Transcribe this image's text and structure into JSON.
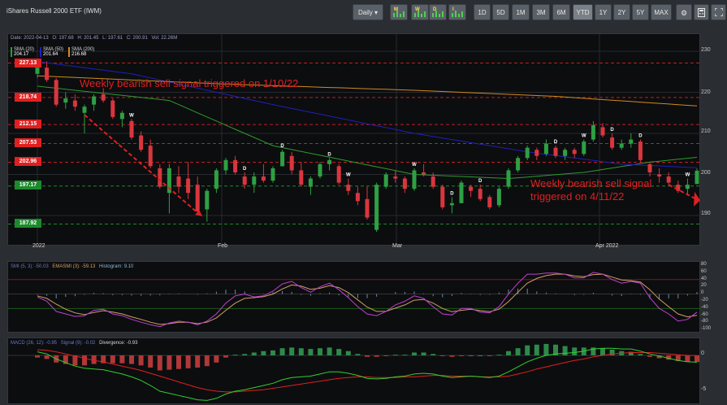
{
  "header": {
    "title": "iShares Russell 2000 ETF (IWM)",
    "interval_label": "Daily",
    "pattern_buttons": [
      "M",
      "W",
      "D",
      "I"
    ],
    "ranges": [
      "1D",
      "5D",
      "1M",
      "3M",
      "6M",
      "YTD",
      "1Y",
      "2Y",
      "5Y",
      "MAX"
    ],
    "active_range": "YTD",
    "icons": [
      "settings-icon",
      "calculator-icon",
      "fullscreen-icon"
    ]
  },
  "ohlc": {
    "date": "Date: 2022-04-13",
    "open": "O: 197.68",
    "high": "H: 201.45",
    "low": "L: 197.61",
    "close": "C: 200.91",
    "vol": "Vol: 22.26M"
  },
  "sma_legend": [
    {
      "label": "SMA (20)",
      "value": "204.17",
      "color": "#2e9c2e"
    },
    {
      "label": "SMA (50)",
      "value": "201.64",
      "color": "#2020b8"
    },
    {
      "label": "SMA (200)",
      "value": "216.68",
      "color": "#d08a20"
    }
  ],
  "price_levels": [
    {
      "value": "227.13",
      "kind": "resistance"
    },
    {
      "value": "218.74",
      "kind": "resistance"
    },
    {
      "value": "212.15",
      "kind": "resistance"
    },
    {
      "value": "207.53",
      "kind": "resistance"
    },
    {
      "value": "202.96",
      "kind": "resistance"
    },
    {
      "value": "197.17",
      "kind": "support"
    },
    {
      "value": "187.92",
      "kind": "support"
    }
  ],
  "annotations": {
    "first": "Weekly bearish sell signal triggered on 1/10/22",
    "second_line1": "Weekly bearish sell signal",
    "second_line2": "triggered on 4/11/22"
  },
  "smi_legend": {
    "smi": "SMI (5, 3): -50.03",
    "ema": "EMASMI (3): -59.13",
    "hist": "Histogram: 9.10"
  },
  "macd_legend": {
    "macd": "MACD (26, 12): -0.95",
    "signal": "Signal (9): -0.02",
    "div": "Divergence: -0.93"
  },
  "x_axis": [
    "2022",
    "Feb",
    "Mar",
    "Apr 2022"
  ],
  "price_axis": [
    "230",
    "220",
    "210",
    "200",
    "190"
  ],
  "smi_axis": [
    "80",
    "60",
    "40",
    "20",
    "0",
    "-20",
    "-40",
    "-60",
    "-80",
    "-100"
  ],
  "macd_axis": [
    "0",
    "-5"
  ],
  "chart_data": {
    "type": "candlestick",
    "title": "iShares Russell 2000 ETF (IWM)",
    "ylim": [
      185,
      232
    ],
    "dates": [
      "01-03",
      "01-04",
      "01-05",
      "01-06",
      "01-07",
      "01-10",
      "01-11",
      "01-12",
      "01-13",
      "01-14",
      "01-18",
      "01-19",
      "01-20",
      "01-21",
      "01-24",
      "01-25",
      "01-26",
      "01-27",
      "01-28",
      "01-31",
      "02-01",
      "02-02",
      "02-03",
      "02-04",
      "02-07",
      "02-08",
      "02-09",
      "02-10",
      "02-11",
      "02-14",
      "02-15",
      "02-16",
      "02-17",
      "02-18",
      "02-22",
      "02-23",
      "02-24",
      "02-25",
      "02-28",
      "03-01",
      "03-02",
      "03-03",
      "03-04",
      "03-07",
      "03-08",
      "03-09",
      "03-10",
      "03-11",
      "03-14",
      "03-15",
      "03-16",
      "03-17",
      "03-18",
      "03-21",
      "03-22",
      "03-23",
      "03-24",
      "03-25",
      "03-28",
      "03-29",
      "03-30",
      "03-31",
      "04-01",
      "04-04",
      "04-05",
      "04-06",
      "04-07",
      "04-08",
      "04-11",
      "04-12",
      "04-13"
    ],
    "ohlc": [
      [
        224.5,
        227.0,
        223.5,
        226.0
      ],
      [
        226.0,
        227.5,
        222.5,
        223.0
      ],
      [
        223.0,
        223.5,
        216.5,
        217.0
      ],
      [
        217.5,
        220.0,
        216.0,
        218.5
      ],
      [
        218.0,
        219.5,
        215.5,
        216.5
      ],
      [
        215.0,
        217.0,
        210.0,
        216.5
      ],
      [
        217.0,
        219.5,
        215.5,
        219.0
      ],
      [
        219.5,
        221.0,
        217.5,
        218.0
      ],
      [
        218.0,
        218.5,
        213.5,
        214.0
      ],
      [
        213.5,
        215.5,
        211.5,
        215.0
      ],
      [
        213.0,
        213.5,
        208.5,
        209.0
      ],
      [
        209.5,
        210.5,
        205.5,
        206.0
      ],
      [
        207.0,
        208.5,
        201.5,
        202.0
      ],
      [
        201.5,
        202.5,
        196.5,
        197.0
      ],
      [
        195.5,
        202.5,
        190.5,
        201.5
      ],
      [
        199.5,
        202.0,
        195.5,
        197.0
      ],
      [
        199.0,
        203.0,
        194.0,
        195.5
      ],
      [
        197.5,
        199.5,
        190.5,
        191.0
      ],
      [
        191.5,
        196.5,
        188.5,
        196.0
      ],
      [
        196.5,
        201.5,
        195.5,
        201.0
      ],
      [
        201.0,
        204.0,
        200.0,
        203.5
      ],
      [
        203.5,
        204.5,
        200.0,
        200.5
      ],
      [
        199.5,
        200.5,
        196.5,
        197.5
      ],
      [
        197.5,
        200.5,
        195.5,
        199.5
      ],
      [
        199.5,
        202.5,
        198.0,
        198.5
      ],
      [
        198.5,
        202.0,
        198.0,
        201.5
      ],
      [
        202.0,
        206.0,
        202.0,
        205.5
      ],
      [
        204.5,
        205.5,
        200.0,
        201.0
      ],
      [
        201.0,
        203.0,
        197.0,
        197.5
      ],
      [
        197.0,
        199.5,
        195.0,
        199.0
      ],
      [
        199.5,
        203.0,
        199.0,
        202.5
      ],
      [
        202.5,
        204.0,
        201.0,
        203.5
      ],
      [
        202.0,
        202.5,
        197.5,
        198.0
      ],
      [
        197.5,
        199.0,
        195.0,
        196.0
      ],
      [
        195.5,
        197.0,
        192.5,
        193.5
      ],
      [
        194.0,
        197.0,
        189.0,
        189.5
      ],
      [
        186.5,
        198.0,
        186.0,
        197.5
      ],
      [
        197.0,
        200.5,
        196.5,
        200.0
      ],
      [
        199.5,
        201.0,
        198.0,
        199.0
      ],
      [
        199.0,
        199.5,
        195.5,
        196.5
      ],
      [
        196.5,
        201.5,
        196.0,
        201.0
      ],
      [
        200.5,
        202.5,
        199.5,
        200.0
      ],
      [
        199.5,
        200.5,
        196.5,
        197.0
      ],
      [
        197.0,
        197.5,
        191.5,
        192.0
      ],
      [
        192.5,
        194.5,
        190.5,
        193.0
      ],
      [
        193.0,
        198.5,
        193.0,
        198.0
      ],
      [
        197.0,
        197.5,
        194.5,
        196.0
      ],
      [
        196.5,
        197.5,
        193.5,
        194.0
      ],
      [
        194.5,
        195.0,
        191.5,
        192.0
      ],
      [
        192.5,
        197.0,
        192.0,
        196.5
      ],
      [
        197.0,
        201.5,
        196.5,
        201.0
      ],
      [
        201.0,
        204.5,
        200.5,
        204.0
      ],
      [
        204.0,
        207.0,
        203.5,
        206.5
      ],
      [
        206.0,
        206.5,
        203.5,
        204.5
      ],
      [
        205.0,
        208.5,
        204.5,
        207.5
      ],
      [
        206.5,
        207.0,
        204.0,
        204.5
      ],
      [
        204.5,
        206.5,
        203.5,
        206.0
      ],
      [
        206.0,
        206.5,
        204.0,
        205.0
      ],
      [
        205.0,
        208.5,
        204.5,
        208.0
      ],
      [
        208.5,
        213.0,
        208.0,
        212.0
      ],
      [
        211.5,
        212.5,
        209.0,
        209.5
      ],
      [
        209.0,
        210.0,
        206.0,
        206.5
      ],
      [
        206.5,
        208.5,
        206.0,
        207.5
      ],
      [
        207.5,
        210.0,
        206.5,
        208.5
      ],
      [
        208.0,
        208.5,
        203.0,
        203.5
      ],
      [
        202.5,
        203.0,
        199.5,
        200.5
      ],
      [
        200.0,
        201.5,
        198.0,
        199.5
      ],
      [
        199.5,
        200.5,
        197.5,
        198.0
      ],
      [
        197.5,
        198.5,
        195.5,
        196.0
      ],
      [
        196.5,
        199.0,
        195.0,
        197.5
      ],
      [
        197.68,
        201.45,
        197.61,
        200.91
      ]
    ],
    "series": [
      {
        "name": "SMA (20)",
        "values": [
          [
            0,
            221.5
          ],
          [
            14,
            218.0
          ],
          [
            25,
            207.0
          ],
          [
            40,
            200.0
          ],
          [
            50,
            199.0
          ],
          [
            58,
            200.5
          ],
          [
            65,
            203.0
          ],
          [
            70,
            204.17
          ]
        ]
      },
      {
        "name": "SMA (50)",
        "values": [
          [
            0,
            227.5
          ],
          [
            10,
            224.5
          ],
          [
            25,
            217.0
          ],
          [
            40,
            210.0
          ],
          [
            52,
            205.5
          ],
          [
            62,
            202.5
          ],
          [
            70,
            201.64
          ]
        ]
      },
      {
        "name": "SMA (200)",
        "values": [
          [
            0,
            224.0
          ],
          [
            20,
            222.0
          ],
          [
            40,
            220.5
          ],
          [
            55,
            219.0
          ],
          [
            70,
            216.68
          ]
        ]
      }
    ],
    "signals": [
      {
        "type": "W",
        "index": 10
      },
      {
        "type": "D",
        "index": 22
      },
      {
        "type": "D",
        "index": 26
      },
      {
        "type": "D",
        "index": 31
      },
      {
        "type": "W",
        "index": 33
      },
      {
        "type": "W",
        "index": 40
      },
      {
        "type": "D",
        "index": 44
      },
      {
        "type": "D",
        "index": 47
      },
      {
        "type": "D",
        "index": 55
      },
      {
        "type": "W",
        "index": 58
      },
      {
        "type": "D",
        "index": 61
      },
      {
        "type": "D",
        "index": 64
      },
      {
        "type": "W",
        "index": 69
      }
    ],
    "smi": [
      -8,
      -20,
      -48,
      -55,
      -62,
      -60,
      -45,
      -42,
      -55,
      -60,
      -70,
      -78,
      -85,
      -90,
      -80,
      -75,
      -78,
      -85,
      -75,
      -55,
      -25,
      -5,
      0,
      -8,
      -5,
      8,
      28,
      35,
      18,
      5,
      20,
      30,
      12,
      -10,
      -35,
      -55,
      -60,
      -48,
      -30,
      -20,
      -5,
      -12,
      -35,
      -55,
      -58,
      -40,
      -40,
      -50,
      -52,
      -35,
      0,
      30,
      55,
      55,
      58,
      58,
      55,
      45,
      45,
      60,
      55,
      40,
      30,
      35,
      30,
      -10,
      -40,
      -55,
      -75,
      -70,
      -50
    ],
    "emasmi": [
      -5,
      -12,
      -28,
      -42,
      -52,
      -57,
      -51,
      -46,
      -50,
      -55,
      -63,
      -70,
      -78,
      -84,
      -82,
      -78,
      -78,
      -82,
      -78,
      -66,
      -45,
      -25,
      -12,
      -10,
      -7,
      0,
      14,
      25,
      22,
      13,
      16,
      23,
      18,
      4,
      -16,
      -36,
      -48,
      -48,
      -39,
      -30,
      -17,
      -15,
      -25,
      -40,
      -49,
      -45,
      -42,
      -46,
      -49,
      -42,
      -21,
      5,
      30,
      43,
      51,
      55,
      55,
      50,
      48,
      54,
      55,
      47,
      39,
      37,
      33,
      12,
      -14,
      -35,
      -55,
      -63,
      -59
    ],
    "macd": [
      0.5,
      0.2,
      -0.5,
      -1.0,
      -1.5,
      -1.8,
      -1.9,
      -2.0,
      -2.3,
      -2.6,
      -3.0,
      -3.5,
      -4.2,
      -5.0,
      -5.3,
      -5.6,
      -5.9,
      -6.2,
      -6.3,
      -6.0,
      -5.4,
      -5.0,
      -4.8,
      -4.5,
      -4.2,
      -3.9,
      -3.4,
      -3.1,
      -3.0,
      -2.9,
      -2.6,
      -2.3,
      -2.3,
      -2.5,
      -2.8,
      -3.2,
      -3.3,
      -3.2,
      -3.0,
      -2.9,
      -2.6,
      -2.5,
      -2.6,
      -2.9,
      -3.1,
      -3.0,
      -2.9,
      -3.0,
      -3.1,
      -2.9,
      -2.3,
      -1.6,
      -0.9,
      -0.4,
      0.0,
      0.2,
      0.3,
      0.4,
      0.6,
      0.9,
      1.0,
      1.0,
      0.9,
      0.9,
      0.6,
      0.2,
      -0.1,
      -0.4,
      -0.7,
      -0.9,
      -0.95
    ],
    "signal": [
      0.8,
      0.7,
      0.5,
      0.2,
      -0.1,
      -0.4,
      -0.7,
      -0.9,
      -1.2,
      -1.5,
      -1.8,
      -2.1,
      -2.5,
      -2.9,
      -3.3,
      -3.7,
      -4.1,
      -4.5,
      -4.8,
      -5.0,
      -5.1,
      -5.1,
      -5.0,
      -4.9,
      -4.8,
      -4.6,
      -4.4,
      -4.2,
      -4.0,
      -3.8,
      -3.6,
      -3.4,
      -3.2,
      -3.1,
      -3.0,
      -3.0,
      -3.1,
      -3.1,
      -3.1,
      -3.0,
      -3.0,
      -2.9,
      -2.8,
      -2.8,
      -2.9,
      -2.9,
      -2.9,
      -3.0,
      -3.0,
      -3.0,
      -2.9,
      -2.6,
      -2.3,
      -1.9,
      -1.6,
      -1.3,
      -1.0,
      -0.7,
      -0.5,
      -0.2,
      0.0,
      0.2,
      0.3,
      0.4,
      0.4,
      0.4,
      0.3,
      0.2,
      0.1,
      0.0,
      -0.02
    ]
  }
}
